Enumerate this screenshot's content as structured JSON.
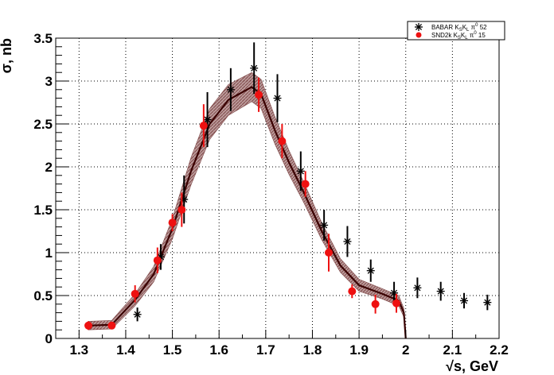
{
  "chart_data": {
    "type": "scatter",
    "title": "",
    "xlabel": "√s, GeV",
    "ylabel": "σ, nb",
    "xlim": [
      1.25,
      2.2
    ],
    "ylim": [
      0,
      3.5
    ],
    "x_ticks": [
      "1.3",
      "1.4",
      "1.5",
      "1.6",
      "1.7",
      "1.8",
      "1.9",
      "2",
      "2.1",
      "2.2"
    ],
    "y_ticks": [
      "0",
      "0.5",
      "1",
      "1.5",
      "2",
      "2.5",
      "3",
      "3.5"
    ],
    "grid": true,
    "legend_position": "top-right",
    "legend": [
      {
        "label": "BABAR K_SK_Lπ⁰ 52",
        "main": "BABAR K",
        "s1": "S",
        "mid": "K",
        "s2": "L",
        "mid2": " π",
        "sup": "0",
        "tail": " 52"
      },
      {
        "label": "SND2k K_SK_Lπ⁰ 15",
        "main": "SND2k K",
        "s1": "S",
        "mid": "K",
        "s2": "L",
        "mid2": " π",
        "sup": "0",
        "tail": " 15"
      }
    ],
    "series": [
      {
        "marker": "star",
        "color": "#000000",
        "points": [
          {
            "x": 1.425,
            "y": 0.28,
            "err": 0.08
          },
          {
            "x": 1.475,
            "y": 0.95,
            "err": 0.15
          },
          {
            "x": 1.525,
            "y": 1.62,
            "err": 0.28
          },
          {
            "x": 1.575,
            "y": 2.55,
            "err": 0.32
          },
          {
            "x": 1.625,
            "y": 2.9,
            "err": 0.25
          },
          {
            "x": 1.675,
            "y": 3.15,
            "err": 0.3
          },
          {
            "x": 1.725,
            "y": 2.8,
            "err": 0.28
          },
          {
            "x": 1.775,
            "y": 1.95,
            "err": 0.23
          },
          {
            "x": 1.825,
            "y": 1.32,
            "err": 0.18
          },
          {
            "x": 1.875,
            "y": 1.13,
            "err": 0.18
          },
          {
            "x": 1.925,
            "y": 0.79,
            "err": 0.13
          },
          {
            "x": 1.975,
            "y": 0.53,
            "err": 0.13
          },
          {
            "x": 2.025,
            "y": 0.59,
            "err": 0.12
          },
          {
            "x": 2.075,
            "y": 0.55,
            "err": 0.11
          },
          {
            "x": 2.125,
            "y": 0.44,
            "err": 0.09
          },
          {
            "x": 2.175,
            "y": 0.42,
            "err": 0.09
          }
        ]
      },
      {
        "marker": "circle",
        "color": "#ee1111",
        "points": [
          {
            "x": 1.32,
            "y": 0.15,
            "err": 0.05
          },
          {
            "x": 1.37,
            "y": 0.15,
            "err": 0.04
          },
          {
            "x": 1.42,
            "y": 0.52,
            "err": 0.1
          },
          {
            "x": 1.468,
            "y": 0.91,
            "err": 0.15
          },
          {
            "x": 1.5,
            "y": 1.35,
            "err": 0.1
          },
          {
            "x": 1.52,
            "y": 1.5,
            "err": 0.2
          },
          {
            "x": 1.567,
            "y": 2.48,
            "err": 0.25
          },
          {
            "x": 1.685,
            "y": 2.84,
            "err": 0.2
          },
          {
            "x": 1.735,
            "y": 2.3,
            "err": 0.2
          },
          {
            "x": 1.785,
            "y": 1.8,
            "err": 0.15
          },
          {
            "x": 1.835,
            "y": 1.0,
            "err": 0.22
          },
          {
            "x": 1.885,
            "y": 0.55,
            "err": 0.08
          },
          {
            "x": 1.935,
            "y": 0.4,
            "err": 0.11
          },
          {
            "x": 1.98,
            "y": 0.41,
            "err": 0.11
          }
        ]
      }
    ],
    "fit_curve": {
      "color": "#3a0000",
      "band_color": "#a07474",
      "points": [
        {
          "x": 1.32,
          "y": 0.15,
          "err": 0.05
        },
        {
          "x": 1.37,
          "y": 0.16,
          "err": 0.05
        },
        {
          "x": 1.42,
          "y": 0.45,
          "err": 0.07
        },
        {
          "x": 1.46,
          "y": 0.75,
          "err": 0.09
        },
        {
          "x": 1.5,
          "y": 1.28,
          "err": 0.12
        },
        {
          "x": 1.54,
          "y": 1.95,
          "err": 0.16
        },
        {
          "x": 1.58,
          "y": 2.5,
          "err": 0.18
        },
        {
          "x": 1.62,
          "y": 2.78,
          "err": 0.18
        },
        {
          "x": 1.67,
          "y": 2.93,
          "err": 0.17
        },
        {
          "x": 1.69,
          "y": 2.85,
          "err": 0.17
        },
        {
          "x": 1.72,
          "y": 2.42,
          "err": 0.16
        },
        {
          "x": 1.75,
          "y": 2.05,
          "err": 0.14
        },
        {
          "x": 1.78,
          "y": 1.72,
          "err": 0.12
        },
        {
          "x": 1.82,
          "y": 1.25,
          "err": 0.1
        },
        {
          "x": 1.86,
          "y": 0.85,
          "err": 0.08
        },
        {
          "x": 1.9,
          "y": 0.62,
          "err": 0.07
        },
        {
          "x": 1.95,
          "y": 0.52,
          "err": 0.06
        },
        {
          "x": 1.985,
          "y": 0.44,
          "err": 0.06
        },
        {
          "x": 1.996,
          "y": 0.3,
          "err": 0.05
        },
        {
          "x": 2.0,
          "y": 0.0,
          "err": 0.0
        }
      ]
    }
  }
}
